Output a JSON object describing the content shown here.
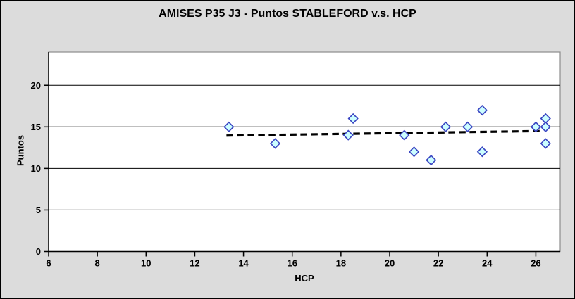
{
  "chart_data": {
    "type": "scatter",
    "title": "AMISES P35 J3 - Puntos STABLEFORD v.s. HCP",
    "xlabel": "HCP",
    "ylabel": "Puntos",
    "xlim": [
      6,
      27
    ],
    "ylim": [
      0,
      24
    ],
    "xticks": [
      6,
      8,
      10,
      12,
      14,
      16,
      18,
      20,
      22,
      24,
      26
    ],
    "yticks": [
      0,
      5,
      10,
      15,
      20
    ],
    "grid": "horizontal-only",
    "legend": "none",
    "series": [
      {
        "name": "Puntos STABLEFORD",
        "marker": "diamond",
        "points": [
          [
            13.4,
            15
          ],
          [
            15.3,
            13
          ],
          [
            18.3,
            14
          ],
          [
            18.5,
            16
          ],
          [
            20.6,
            14
          ],
          [
            21.0,
            12
          ],
          [
            21.7,
            11
          ],
          [
            22.3,
            15
          ],
          [
            23.2,
            15
          ],
          [
            23.8,
            17
          ],
          [
            23.8,
            12
          ],
          [
            26.0,
            15
          ],
          [
            26.4,
            16
          ],
          [
            26.4,
            15
          ],
          [
            26.4,
            13
          ]
        ]
      }
    ],
    "trendline": {
      "style": "dashed",
      "x1": 13.3,
      "y1": 13.95,
      "x2": 26.25,
      "y2": 14.5
    },
    "colors": {
      "background": "#DCDCDC",
      "plot_background": "#FFFFFF",
      "outer_border": "#000000",
      "plot_frame": "#8C8C8C",
      "gridline": "#000000",
      "axis": "#000000",
      "tick_text": "#000000",
      "marker_fill": "#CCFFFF",
      "marker_stroke": "#3A45C2",
      "trendline": "#000000"
    }
  }
}
